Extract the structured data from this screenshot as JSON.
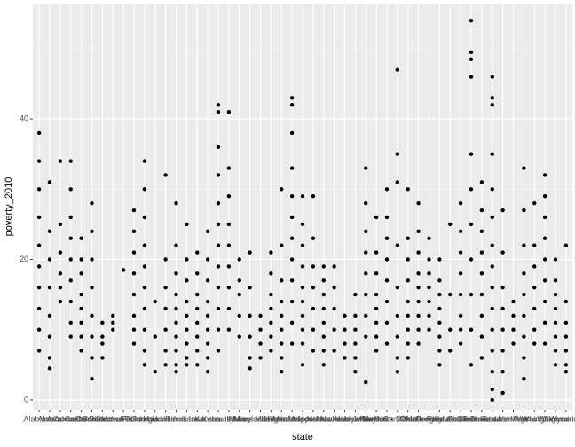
{
  "chart_data": {
    "type": "strip",
    "x_label": "state",
    "y_label": "poverty_2010",
    "categories": [
      "Alabama",
      "Alaska",
      "Arizona",
      "Arkansas",
      "California",
      "Colorado",
      "Connecticut",
      "Delaware",
      "District of Columbia",
      "Florida",
      "Georgia",
      "Hawaii",
      "Idaho",
      "Illinois",
      "Indiana",
      "Iowa",
      "Kansas",
      "Kentucky",
      "Louisiana",
      "Maine",
      "Maryland",
      "Massachusetts",
      "Michigan",
      "Minnesota",
      "Mississippi",
      "Missouri",
      "Montana",
      "Nebraska",
      "Nevada",
      "New Hampshire",
      "New Jersey",
      "New Mexico",
      "New York",
      "North Carolina",
      "North Dakota",
      "Ohio",
      "Oklahoma",
      "Oregon",
      "Pennsylvania",
      "Rhode Island",
      "South Carolina",
      "South Dakota",
      "Tennessee",
      "Texas",
      "Utah",
      "Vermont",
      "Virginia",
      "Washington",
      "West Virginia",
      "Wisconsin",
      "Wyoming"
    ],
    "values": [
      [
        38,
        34,
        30,
        26,
        22,
        19,
        16,
        13,
        10,
        7
      ],
      [
        31,
        24,
        20,
        16,
        12,
        9,
        6,
        4.5
      ],
      [
        34,
        25,
        21,
        18,
        16,
        14
      ],
      [
        34,
        30,
        26,
        23,
        20,
        17,
        14,
        11,
        9
      ],
      [
        23,
        20,
        18,
        15,
        13,
        11,
        9,
        7
      ],
      [
        28,
        24,
        20,
        16,
        12,
        9,
        6,
        3
      ],
      [
        11,
        9,
        8,
        6
      ],
      [
        12,
        11,
        10
      ],
      [
        18.5
      ],
      [
        27,
        24,
        21,
        18,
        15,
        12,
        10,
        8
      ],
      [
        34,
        30,
        26,
        22,
        19,
        16,
        13,
        10,
        7,
        5
      ],
      [
        14,
        9,
        4
      ],
      [
        32,
        20,
        16,
        13,
        10,
        7,
        5
      ],
      [
        28,
        22,
        18,
        15,
        13,
        11,
        9,
        7,
        5,
        4
      ],
      [
        25,
        20,
        17,
        14,
        12,
        10,
        8,
        6,
        5
      ],
      [
        21,
        18,
        15,
        13,
        11,
        9,
        7,
        5
      ],
      [
        24,
        20,
        17,
        14,
        12,
        10,
        8,
        6,
        4
      ],
      [
        42,
        41,
        36,
        32,
        28,
        25,
        22,
        19,
        16,
        13,
        10,
        7
      ],
      [
        41,
        33,
        29,
        25,
        22,
        19,
        16,
        13,
        10
      ],
      [
        20,
        17,
        15,
        12,
        9
      ],
      [
        21,
        16,
        12,
        9,
        6,
        4.5
      ],
      [
        12,
        10,
        8,
        6
      ],
      [
        21,
        18,
        15,
        13,
        11,
        9,
        7
      ],
      [
        30,
        22,
        17,
        14,
        12,
        10,
        8,
        6,
        4
      ],
      [
        43,
        42,
        38,
        33,
        29,
        26,
        23,
        20,
        17,
        14,
        11,
        8
      ],
      [
        29,
        25,
        22,
        19,
        16,
        14,
        12,
        10,
        8,
        5
      ],
      [
        29,
        23,
        19,
        16,
        13,
        10,
        7
      ],
      [
        19,
        17,
        15,
        13,
        11,
        9,
        7,
        5
      ],
      [
        19,
        16,
        13,
        10,
        7
      ],
      [
        12,
        10,
        8,
        6
      ],
      [
        15,
        12,
        10,
        8,
        6,
        4
      ],
      [
        33,
        28,
        24,
        21,
        18,
        15,
        12,
        9,
        2.5
      ],
      [
        26,
        21,
        18,
        15,
        13,
        11,
        9,
        7
      ],
      [
        30,
        26,
        23,
        20,
        17,
        14,
        11,
        8
      ],
      [
        47,
        35,
        31,
        22,
        16,
        12,
        9,
        6,
        4
      ],
      [
        30,
        23,
        20,
        17,
        14,
        12,
        10,
        8,
        6
      ],
      [
        28,
        24,
        21,
        18,
        16,
        14,
        12,
        10,
        8
      ],
      [
        23,
        20,
        18,
        16,
        14,
        12,
        10
      ],
      [
        20,
        17,
        15,
        13,
        11,
        9,
        7,
        5
      ],
      [
        25,
        15,
        10,
        7
      ],
      [
        28,
        24,
        21,
        18,
        15,
        12,
        10,
        8
      ],
      [
        54,
        49.5,
        48.5,
        46,
        35,
        30,
        25,
        20,
        15,
        10,
        5
      ],
      [
        31,
        27,
        24,
        21,
        18,
        15,
        12,
        9,
        6
      ],
      [
        46,
        43,
        42,
        35,
        30,
        26,
        22,
        19,
        16,
        13,
        10,
        7,
        4,
        1.5,
        0
      ],
      [
        27,
        21,
        16,
        13,
        10,
        7,
        4,
        1
      ],
      [
        14,
        12,
        10,
        8
      ],
      [
        33,
        27,
        22,
        18,
        15,
        12,
        9,
        6,
        3
      ],
      [
        28,
        22,
        19,
        16,
        13,
        10,
        8
      ],
      [
        32,
        29,
        26,
        23,
        20,
        17,
        14,
        11,
        8
      ],
      [
        20,
        17,
        15,
        13,
        11,
        9,
        7,
        5
      ],
      [
        22,
        14,
        11,
        9,
        7,
        5,
        4
      ]
    ],
    "color": "#000000",
    "ylim": [
      -1.4,
      56.3
    ],
    "yticks": [
      0,
      20,
      40
    ],
    "minor_yticks": [
      10,
      30,
      50
    ],
    "grid": true
  }
}
